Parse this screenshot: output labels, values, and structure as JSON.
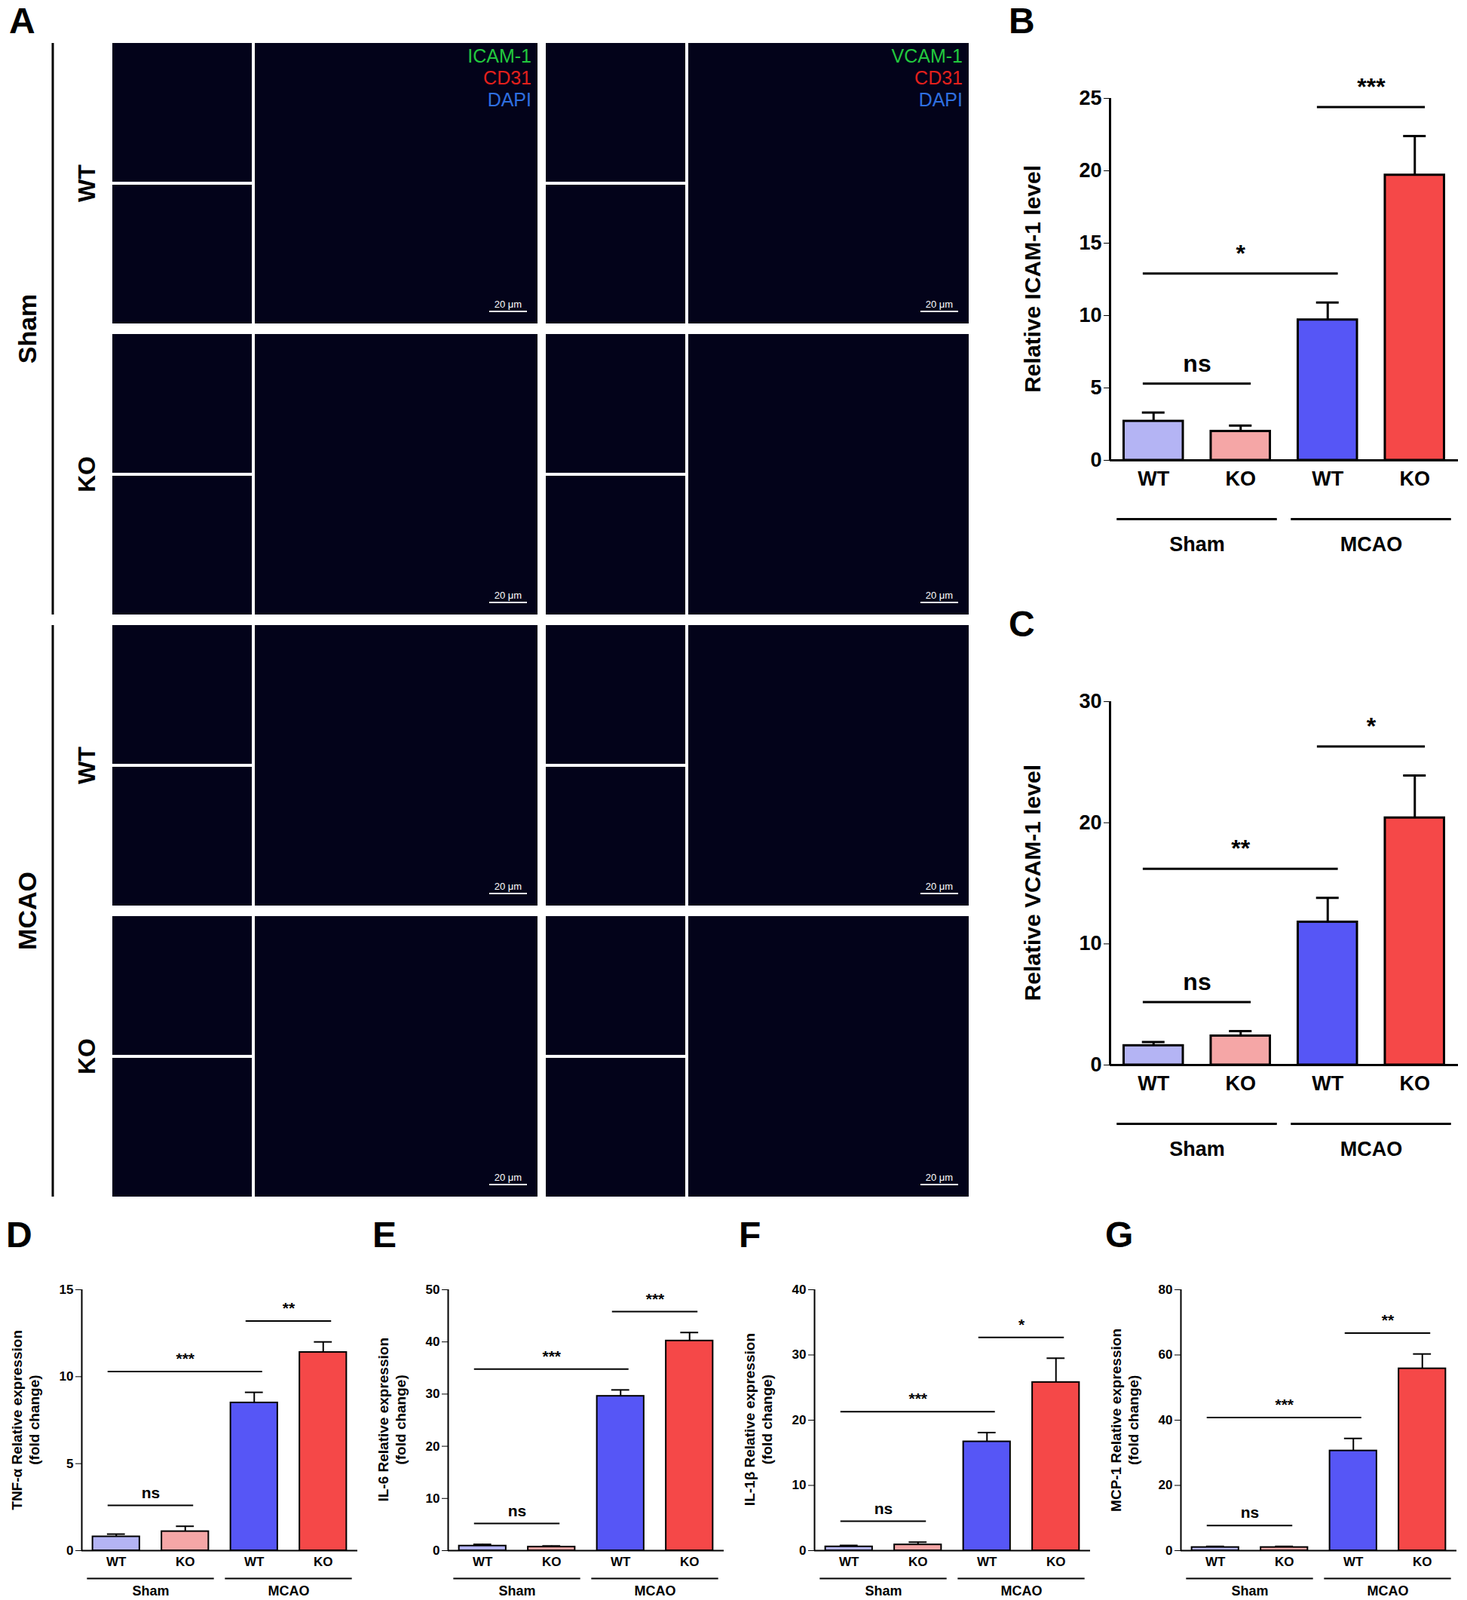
{
  "image_panel": {
    "panel": "A",
    "groups": [
      {
        "label": "Sham",
        "rows": [
          "WT",
          "KO"
        ]
      },
      {
        "label": "MCAO",
        "rows": [
          "WT",
          "KO"
        ]
      }
    ],
    "columns": [
      {
        "stains": [
          {
            "text": "ICAM-1",
            "color": "#22c83e"
          },
          {
            "text": "CD31",
            "color": "#e3201c"
          },
          {
            "text": "DAPI",
            "color": "#2f6fe0"
          }
        ]
      },
      {
        "stains": [
          {
            "text": "VCAM-1",
            "color": "#22c83e"
          },
          {
            "text": "CD31",
            "color": "#e3201c"
          },
          {
            "text": "DAPI",
            "color": "#2f6fe0"
          }
        ]
      }
    ],
    "scale_bar": "20 μm"
  },
  "chart_data": [
    {
      "panel": "B",
      "type": "bar",
      "y_label": "Relative ICAM-1 level",
      "categories": [
        "WT",
        "KO",
        "WT",
        "KO"
      ],
      "values": [
        2.7,
        2.0,
        9.7,
        19.7
      ],
      "errors": [
        0.6,
        0.4,
        1.2,
        2.7
      ],
      "colors": [
        "#b4b4f4",
        "#f5a6a6",
        "#5656f6",
        "#f54848"
      ],
      "groups": [
        {
          "label": "Sham",
          "categories": [
            0,
            1
          ]
        },
        {
          "label": "MCAO",
          "categories": [
            2,
            3
          ]
        }
      ],
      "annotations": [
        {
          "text": "ns",
          "from": 0,
          "to": 1
        },
        {
          "text": "*",
          "from": 0,
          "to": 2
        },
        {
          "text": "***",
          "from": 2,
          "to": 3
        }
      ],
      "ylim": [
        0,
        25
      ],
      "yticks": [
        0,
        5,
        10,
        15,
        20,
        25
      ]
    },
    {
      "panel": "C",
      "type": "bar",
      "y_label": "Relative VCAM-1 level",
      "categories": [
        "WT",
        "KO",
        "WT",
        "KO"
      ],
      "values": [
        1.6,
        2.4,
        11.8,
        20.4
      ],
      "errors": [
        0.3,
        0.4,
        2.0,
        3.5
      ],
      "colors": [
        "#b4b4f4",
        "#f5a6a6",
        "#5656f6",
        "#f54848"
      ],
      "groups": [
        {
          "label": "Sham",
          "categories": [
            0,
            1
          ]
        },
        {
          "label": "MCAO",
          "categories": [
            2,
            3
          ]
        }
      ],
      "annotations": [
        {
          "text": "ns",
          "from": 0,
          "to": 1
        },
        {
          "text": "**",
          "from": 0,
          "to": 2
        },
        {
          "text": "*",
          "from": 2,
          "to": 3
        }
      ],
      "ylim": [
        0,
        30
      ],
      "yticks": [
        0,
        10,
        20,
        30
      ]
    },
    {
      "panel": "D",
      "type": "bar",
      "y_label": "TNF-α Relative expression\n(fold change)",
      "categories": [
        "WT",
        "KO",
        "WT",
        "KO"
      ],
      "values": [
        0.8,
        1.1,
        8.5,
        11.4
      ],
      "errors": [
        0.15,
        0.3,
        0.6,
        0.6
      ],
      "colors": [
        "#b4b4f4",
        "#f5a6a6",
        "#5656f6",
        "#f54848"
      ],
      "groups": [
        {
          "label": "Sham",
          "categories": [
            0,
            1
          ]
        },
        {
          "label": "MCAO",
          "categories": [
            2,
            3
          ]
        }
      ],
      "annotations": [
        {
          "text": "ns",
          "from": 0,
          "to": 1
        },
        {
          "text": "***",
          "from": 0,
          "to": 2
        },
        {
          "text": "**",
          "from": 2,
          "to": 3
        }
      ],
      "ylim": [
        0,
        15
      ],
      "yticks": [
        0,
        5,
        10,
        15
      ]
    },
    {
      "panel": "E",
      "type": "bar",
      "y_label": "IL-6 Relative expression\n(fold change)",
      "categories": [
        "WT",
        "KO",
        "WT",
        "KO"
      ],
      "values": [
        0.9,
        0.7,
        29.6,
        40.2
      ],
      "errors": [
        0.3,
        0.2,
        1.2,
        1.6
      ],
      "colors": [
        "#b4b4f4",
        "#f5a6a6",
        "#5656f6",
        "#f54848"
      ],
      "groups": [
        {
          "label": "Sham",
          "categories": [
            0,
            1
          ]
        },
        {
          "label": "MCAO",
          "categories": [
            2,
            3
          ]
        }
      ],
      "annotations": [
        {
          "text": "ns",
          "from": 0,
          "to": 1
        },
        {
          "text": "***",
          "from": 0,
          "to": 2
        },
        {
          "text": "***",
          "from": 2,
          "to": 3
        }
      ],
      "ylim": [
        0,
        50
      ],
      "yticks": [
        0,
        10,
        20,
        30,
        40,
        50
      ]
    },
    {
      "panel": "F",
      "type": "bar",
      "y_label": "IL-1β Relative expression\n(fold change)",
      "categories": [
        "WT",
        "KO",
        "WT",
        "KO"
      ],
      "values": [
        0.6,
        0.9,
        16.7,
        25.8
      ],
      "errors": [
        0.2,
        0.4,
        1.4,
        3.7
      ],
      "colors": [
        "#b4b4f4",
        "#f5a6a6",
        "#5656f6",
        "#f54848"
      ],
      "groups": [
        {
          "label": "Sham",
          "categories": [
            0,
            1
          ]
        },
        {
          "label": "MCAO",
          "categories": [
            2,
            3
          ]
        }
      ],
      "annotations": [
        {
          "text": "ns",
          "from": 0,
          "to": 1
        },
        {
          "text": "***",
          "from": 0,
          "to": 2
        },
        {
          "text": "*",
          "from": 2,
          "to": 3
        }
      ],
      "ylim": [
        0,
        40
      ],
      "yticks": [
        0,
        10,
        20,
        30,
        40
      ]
    },
    {
      "panel": "G",
      "type": "bar",
      "y_label": "MCP-1 Relative expression\n(fold change)",
      "categories": [
        "WT",
        "KO",
        "WT",
        "KO"
      ],
      "values": [
        1.0,
        1.0,
        30.6,
        55.8
      ],
      "errors": [
        0.3,
        0.3,
        3.8,
        4.5
      ],
      "colors": [
        "#b4b4f4",
        "#f5a6a6",
        "#5656f6",
        "#f54848"
      ],
      "groups": [
        {
          "label": "Sham",
          "categories": [
            0,
            1
          ]
        },
        {
          "label": "MCAO",
          "categories": [
            2,
            3
          ]
        }
      ],
      "annotations": [
        {
          "text": "ns",
          "from": 0,
          "to": 1
        },
        {
          "text": "***",
          "from": 0,
          "to": 2
        },
        {
          "text": "**",
          "from": 2,
          "to": 3
        }
      ],
      "ylim": [
        0,
        80
      ],
      "yticks": [
        0,
        20,
        40,
        60,
        80
      ]
    }
  ]
}
